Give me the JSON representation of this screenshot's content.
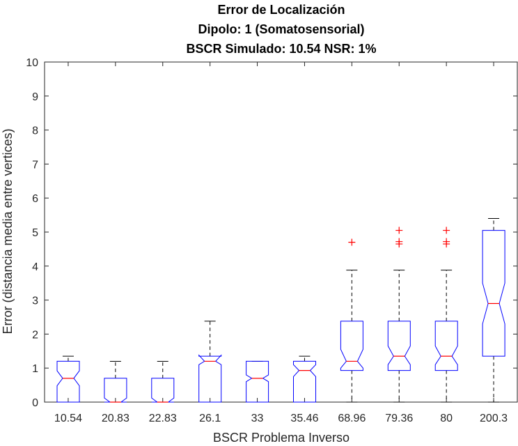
{
  "chart_data": {
    "type": "boxplot",
    "title_lines": [
      "Error de Localización",
      "Dipolo: 1 (Somatosensorial)",
      "BSCR Simulado: 10.54 NSR: 1%"
    ],
    "xlabel": "BSCR Problema Inverso",
    "ylabel": "Error (distancia media entre vertices)",
    "ylim": [
      0,
      10
    ],
    "yticks": [
      "0",
      "1",
      "2",
      "3",
      "4",
      "5",
      "6",
      "7",
      "8",
      "9",
      "10"
    ],
    "categories": [
      "10.54",
      "20.83",
      "22.83",
      "26.1",
      "33",
      "35.46",
      "68.96",
      "79.36",
      "80",
      "200.3"
    ],
    "box_color": "#0000ff",
    "median_color": "#ff0000",
    "outlier_color": "#ff0000",
    "boxes": [
      {
        "whisker_low": 0,
        "q1": 0,
        "median": 0.7,
        "q3": 1.2,
        "whisker_high": 1.35,
        "notch_low": 0.48,
        "notch_high": 0.92,
        "outliers": []
      },
      {
        "whisker_low": 0,
        "q1": 0,
        "median": 0,
        "q3": 0.7,
        "whisker_high": 1.2,
        "notch_low": 0,
        "notch_high": 0.12,
        "outliers": []
      },
      {
        "whisker_low": 0,
        "q1": 0,
        "median": 0,
        "q3": 0.7,
        "whisker_high": 1.2,
        "notch_low": 0,
        "notch_high": 0.12,
        "outliers": []
      },
      {
        "whisker_low": 0,
        "q1": 0,
        "median": 1.2,
        "q3": 1.35,
        "whisker_high": 2.38,
        "notch_low": 1.1,
        "notch_high": 1.38,
        "outliers": []
      },
      {
        "whisker_low": 0,
        "q1": 0,
        "median": 0.7,
        "q3": 1.2,
        "whisker_high": 1.2,
        "notch_low": 0.6,
        "notch_high": 0.8,
        "outliers": []
      },
      {
        "whisker_low": 0,
        "q1": 0,
        "median": 0.93,
        "q3": 1.2,
        "whisker_high": 1.35,
        "notch_low": 0.75,
        "notch_high": 1.1,
        "outliers": []
      },
      {
        "whisker_low": 0,
        "q1": 0.93,
        "median": 1.2,
        "q3": 2.38,
        "whisker_high": 3.88,
        "notch_low": 1.0,
        "notch_high": 1.55,
        "outliers": [
          4.7
        ]
      },
      {
        "whisker_low": 0,
        "q1": 0.93,
        "median": 1.35,
        "q3": 2.38,
        "whisker_high": 3.88,
        "notch_low": 1.1,
        "notch_high": 1.65,
        "outliers": [
          4.65,
          4.72,
          5.05
        ]
      },
      {
        "whisker_low": 0,
        "q1": 0.93,
        "median": 1.35,
        "q3": 2.38,
        "whisker_high": 3.88,
        "notch_low": 1.1,
        "notch_high": 1.65,
        "outliers": [
          4.65,
          4.72,
          5.05
        ]
      },
      {
        "whisker_low": 0,
        "q1": 1.35,
        "median": 2.9,
        "q3": 5.05,
        "whisker_high": 5.4,
        "notch_low": 2.3,
        "notch_high": 3.5,
        "outliers": []
      }
    ]
  }
}
